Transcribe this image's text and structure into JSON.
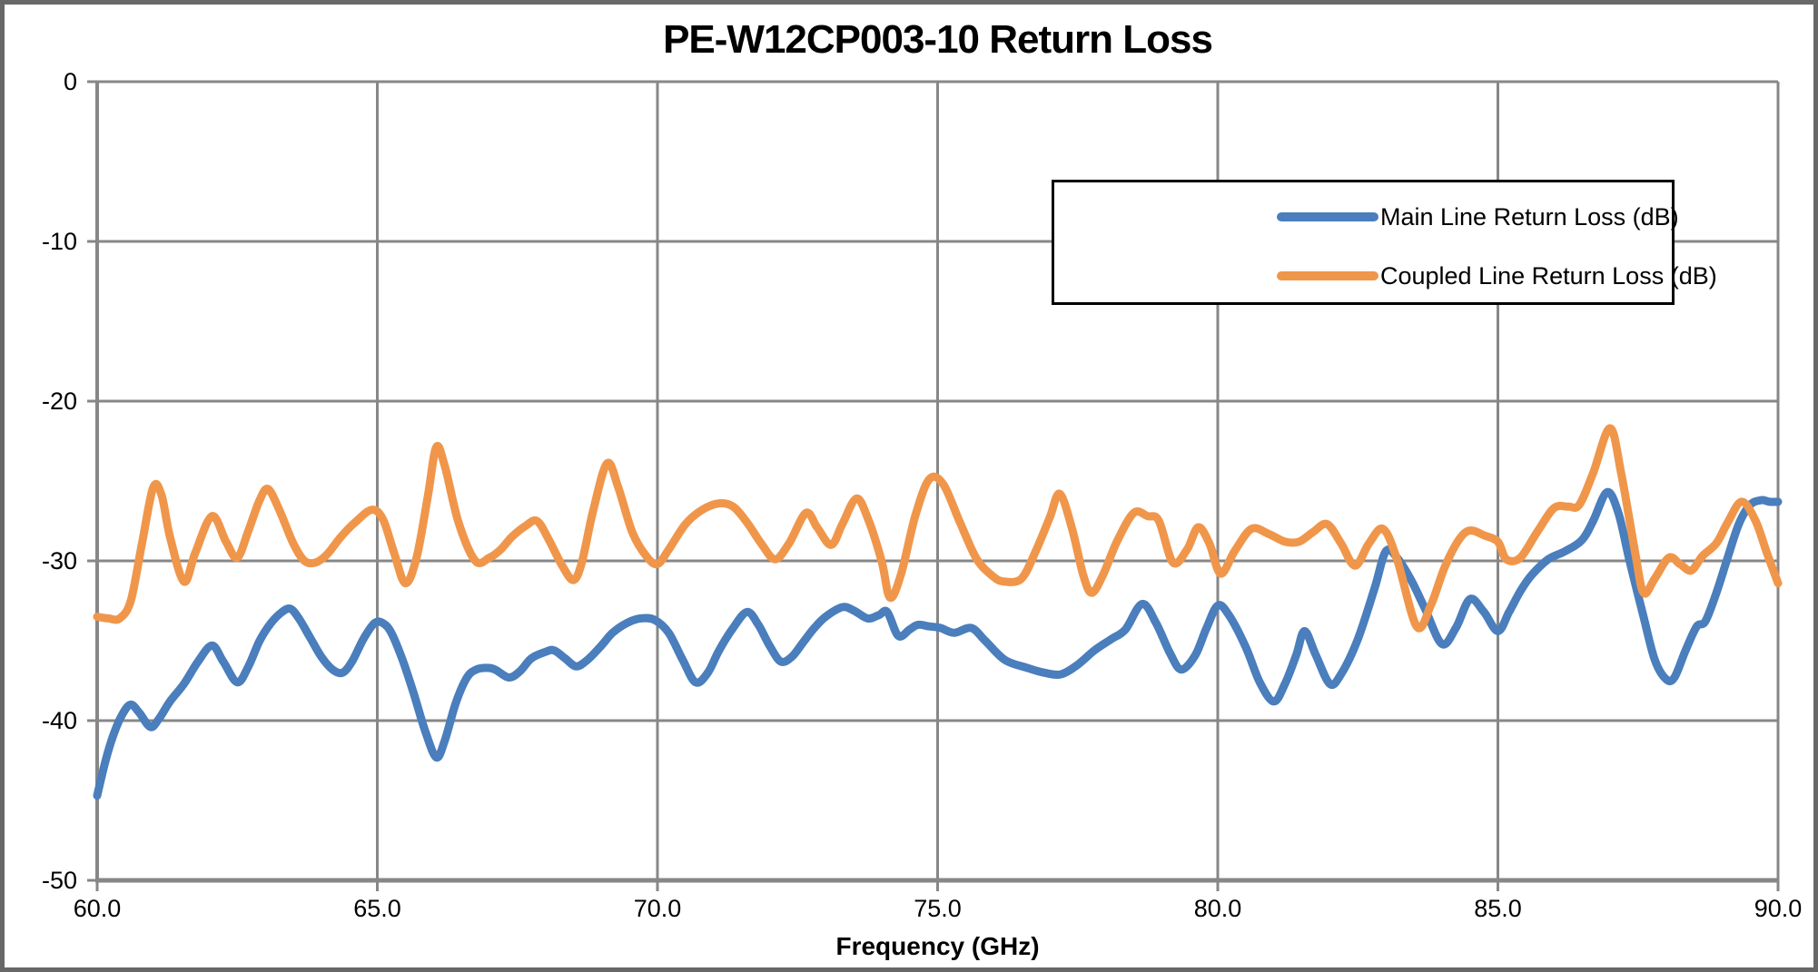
{
  "title": "PE-W12CP003-10 Return Loss",
  "x_axis_label": "Frequency (GHz)",
  "legend": {
    "items": [
      {
        "label": "Main Line Return Loss (dB)",
        "color": "#4A7EBC"
      },
      {
        "label": "Coupled Line Return Loss (dB)",
        "color": "#F0964B"
      }
    ]
  },
  "axes": {
    "grid_color": "#878787",
    "axis_color": "#878787",
    "x_ticks": [
      {
        "value": 60,
        "label": "60.0"
      },
      {
        "value": 65,
        "label": "65.0"
      },
      {
        "value": 70,
        "label": "70.0"
      },
      {
        "value": 75,
        "label": "75.0"
      },
      {
        "value": 80,
        "label": "80.0"
      },
      {
        "value": 85,
        "label": "85.0"
      },
      {
        "value": 90,
        "label": "90.0"
      }
    ],
    "y_ticks": [
      {
        "value": 0,
        "label": "0"
      },
      {
        "value": -10,
        "label": "-10"
      },
      {
        "value": -20,
        "label": "-20"
      },
      {
        "value": -30,
        "label": "-30"
      },
      {
        "value": -40,
        "label": "-40"
      },
      {
        "value": -50,
        "label": "-50"
      }
    ]
  },
  "chart_data": {
    "type": "line",
    "title": "PE-W12CP003-10 Return Loss",
    "xlabel": "Frequency (GHz)",
    "ylabel": "",
    "xlim": [
      60,
      90
    ],
    "ylim": [
      -50,
      0
    ],
    "grid": true,
    "legend_position": "upper-right-box",
    "series": [
      {
        "name": "Main Line Return Loss (dB)",
        "color": "#4A7EBC",
        "points": [
          [
            60.0,
            -44.7
          ],
          [
            60.15,
            -42.5
          ],
          [
            60.3,
            -40.8
          ],
          [
            60.45,
            -39.6
          ],
          [
            60.6,
            -39.0
          ],
          [
            60.75,
            -39.5
          ],
          [
            60.95,
            -40.4
          ],
          [
            61.1,
            -39.9
          ],
          [
            61.3,
            -38.8
          ],
          [
            61.55,
            -37.7
          ],
          [
            61.8,
            -36.3
          ],
          [
            62.05,
            -35.3
          ],
          [
            62.25,
            -36.3
          ],
          [
            62.5,
            -37.6
          ],
          [
            62.7,
            -36.6
          ],
          [
            62.9,
            -35.0
          ],
          [
            63.1,
            -33.9
          ],
          [
            63.3,
            -33.2
          ],
          [
            63.45,
            -33.0
          ],
          [
            63.6,
            -33.6
          ],
          [
            63.8,
            -34.8
          ],
          [
            64.0,
            -36.0
          ],
          [
            64.2,
            -36.8
          ],
          [
            64.38,
            -37.0
          ],
          [
            64.55,
            -36.3
          ],
          [
            64.75,
            -34.9
          ],
          [
            64.95,
            -33.9
          ],
          [
            65.1,
            -33.9
          ],
          [
            65.25,
            -34.5
          ],
          [
            65.45,
            -36.2
          ],
          [
            65.65,
            -38.3
          ],
          [
            65.85,
            -40.6
          ],
          [
            66.05,
            -42.3
          ],
          [
            66.2,
            -41.3
          ],
          [
            66.4,
            -38.9
          ],
          [
            66.6,
            -37.3
          ],
          [
            66.77,
            -36.8
          ],
          [
            66.95,
            -36.7
          ],
          [
            67.1,
            -36.8
          ],
          [
            67.35,
            -37.3
          ],
          [
            67.55,
            -36.9
          ],
          [
            67.75,
            -36.1
          ],
          [
            68.0,
            -35.7
          ],
          [
            68.15,
            -35.6
          ],
          [
            68.35,
            -36.1
          ],
          [
            68.55,
            -36.6
          ],
          [
            68.75,
            -36.2
          ],
          [
            69.0,
            -35.3
          ],
          [
            69.2,
            -34.5
          ],
          [
            69.45,
            -33.9
          ],
          [
            69.7,
            -33.6
          ],
          [
            69.95,
            -33.7
          ],
          [
            70.2,
            -34.5
          ],
          [
            70.45,
            -36.2
          ],
          [
            70.68,
            -37.6
          ],
          [
            70.9,
            -37.0
          ],
          [
            71.1,
            -35.6
          ],
          [
            71.35,
            -34.2
          ],
          [
            71.6,
            -33.2
          ],
          [
            71.8,
            -34.0
          ],
          [
            72.0,
            -35.3
          ],
          [
            72.2,
            -36.3
          ],
          [
            72.4,
            -36.0
          ],
          [
            72.6,
            -35.1
          ],
          [
            72.8,
            -34.2
          ],
          [
            73.0,
            -33.5
          ],
          [
            73.3,
            -32.9
          ],
          [
            73.5,
            -33.1
          ],
          [
            73.75,
            -33.6
          ],
          [
            73.95,
            -33.4
          ],
          [
            74.1,
            -33.2
          ],
          [
            74.3,
            -34.7
          ],
          [
            74.5,
            -34.3
          ],
          [
            74.65,
            -34.0
          ],
          [
            74.85,
            -34.1
          ],
          [
            75.05,
            -34.2
          ],
          [
            75.3,
            -34.5
          ],
          [
            75.6,
            -34.2
          ],
          [
            75.85,
            -35.0
          ],
          [
            76.2,
            -36.2
          ],
          [
            76.6,
            -36.7
          ],
          [
            76.9,
            -37.0
          ],
          [
            77.2,
            -37.1
          ],
          [
            77.5,
            -36.5
          ],
          [
            77.8,
            -35.6
          ],
          [
            78.1,
            -34.9
          ],
          [
            78.35,
            -34.3
          ],
          [
            78.65,
            -32.7
          ],
          [
            78.9,
            -33.9
          ],
          [
            79.15,
            -35.8
          ],
          [
            79.35,
            -36.8
          ],
          [
            79.6,
            -35.9
          ],
          [
            79.8,
            -34.2
          ],
          [
            80.0,
            -32.8
          ],
          [
            80.2,
            -33.4
          ],
          [
            80.5,
            -35.4
          ],
          [
            80.75,
            -37.6
          ],
          [
            81.0,
            -38.8
          ],
          [
            81.2,
            -37.7
          ],
          [
            81.4,
            -35.9
          ],
          [
            81.55,
            -34.4
          ],
          [
            81.75,
            -35.9
          ],
          [
            82.0,
            -37.7
          ],
          [
            82.2,
            -37.1
          ],
          [
            82.5,
            -34.9
          ],
          [
            82.8,
            -31.7
          ],
          [
            83.0,
            -29.4
          ],
          [
            83.2,
            -29.8
          ],
          [
            83.45,
            -31.2
          ],
          [
            83.7,
            -33.0
          ],
          [
            84.0,
            -35.2
          ],
          [
            84.25,
            -34.2
          ],
          [
            84.5,
            -32.4
          ],
          [
            84.75,
            -33.2
          ],
          [
            85.0,
            -34.4
          ],
          [
            85.2,
            -33.2
          ],
          [
            85.4,
            -31.9
          ],
          [
            85.6,
            -30.9
          ],
          [
            85.9,
            -29.9
          ],
          [
            86.2,
            -29.4
          ],
          [
            86.5,
            -28.7
          ],
          [
            86.7,
            -27.5
          ],
          [
            86.95,
            -25.7
          ],
          [
            87.15,
            -27.0
          ],
          [
            87.35,
            -30.0
          ],
          [
            87.6,
            -33.5
          ],
          [
            87.8,
            -36.2
          ],
          [
            88.0,
            -37.4
          ],
          [
            88.15,
            -37.3
          ],
          [
            88.35,
            -35.6
          ],
          [
            88.55,
            -34.1
          ],
          [
            88.7,
            -33.8
          ],
          [
            88.9,
            -32.0
          ],
          [
            89.1,
            -29.8
          ],
          [
            89.3,
            -27.7
          ],
          [
            89.5,
            -26.5
          ],
          [
            89.7,
            -26.2
          ],
          [
            89.85,
            -26.3
          ],
          [
            90.0,
            -26.3
          ]
        ]
      },
      {
        "name": "Coupled Line Return Loss (dB)",
        "color": "#F0964B",
        "points": [
          [
            60.0,
            -33.5
          ],
          [
            60.2,
            -33.6
          ],
          [
            60.4,
            -33.6
          ],
          [
            60.6,
            -32.5
          ],
          [
            60.8,
            -28.9
          ],
          [
            61.0,
            -25.4
          ],
          [
            61.15,
            -25.9
          ],
          [
            61.3,
            -28.5
          ],
          [
            61.55,
            -31.3
          ],
          [
            61.75,
            -29.5
          ],
          [
            62.05,
            -27.2
          ],
          [
            62.3,
            -28.8
          ],
          [
            62.5,
            -29.8
          ],
          [
            62.7,
            -28.1
          ],
          [
            62.9,
            -26.2
          ],
          [
            63.05,
            -25.5
          ],
          [
            63.25,
            -26.8
          ],
          [
            63.5,
            -28.9
          ],
          [
            63.7,
            -30.0
          ],
          [
            63.9,
            -30.1
          ],
          [
            64.1,
            -29.6
          ],
          [
            64.35,
            -28.5
          ],
          [
            64.6,
            -27.6
          ],
          [
            64.9,
            -26.8
          ],
          [
            65.1,
            -27.4
          ],
          [
            65.3,
            -29.5
          ],
          [
            65.5,
            -31.4
          ],
          [
            65.7,
            -29.8
          ],
          [
            65.9,
            -26.0
          ],
          [
            66.05,
            -22.9
          ],
          [
            66.2,
            -24.0
          ],
          [
            66.45,
            -27.6
          ],
          [
            66.75,
            -30.0
          ],
          [
            67.0,
            -29.8
          ],
          [
            67.2,
            -29.3
          ],
          [
            67.4,
            -28.5
          ],
          [
            67.65,
            -27.8
          ],
          [
            67.85,
            -27.5
          ],
          [
            68.05,
            -28.6
          ],
          [
            68.3,
            -30.3
          ],
          [
            68.5,
            -31.2
          ],
          [
            68.65,
            -30.1
          ],
          [
            68.85,
            -26.9
          ],
          [
            69.1,
            -23.9
          ],
          [
            69.3,
            -25.4
          ],
          [
            69.55,
            -28.2
          ],
          [
            69.8,
            -29.7
          ],
          [
            70.0,
            -30.2
          ],
          [
            70.2,
            -29.3
          ],
          [
            70.5,
            -27.7
          ],
          [
            70.8,
            -26.8
          ],
          [
            71.1,
            -26.4
          ],
          [
            71.35,
            -26.6
          ],
          [
            71.6,
            -27.6
          ],
          [
            71.85,
            -28.9
          ],
          [
            72.1,
            -29.9
          ],
          [
            72.35,
            -28.9
          ],
          [
            72.65,
            -27.0
          ],
          [
            72.85,
            -27.9
          ],
          [
            73.1,
            -29.0
          ],
          [
            73.3,
            -27.7
          ],
          [
            73.55,
            -26.1
          ],
          [
            73.75,
            -27.3
          ],
          [
            74.0,
            -30.0
          ],
          [
            74.15,
            -32.3
          ],
          [
            74.35,
            -30.8
          ],
          [
            74.6,
            -27.2
          ],
          [
            74.85,
            -24.9
          ],
          [
            75.1,
            -25.2
          ],
          [
            75.4,
            -27.6
          ],
          [
            75.7,
            -29.9
          ],
          [
            76.0,
            -31.0
          ],
          [
            76.2,
            -31.3
          ],
          [
            76.5,
            -31.1
          ],
          [
            76.75,
            -29.4
          ],
          [
            77.0,
            -27.3
          ],
          [
            77.18,
            -25.8
          ],
          [
            77.4,
            -28.0
          ],
          [
            77.6,
            -30.9
          ],
          [
            77.75,
            -32.0
          ],
          [
            77.95,
            -30.9
          ],
          [
            78.2,
            -28.8
          ],
          [
            78.5,
            -27.0
          ],
          [
            78.75,
            -27.2
          ],
          [
            78.95,
            -27.5
          ],
          [
            79.2,
            -30.1
          ],
          [
            79.45,
            -29.3
          ],
          [
            79.65,
            -27.9
          ],
          [
            79.85,
            -28.9
          ],
          [
            80.05,
            -30.8
          ],
          [
            80.3,
            -29.4
          ],
          [
            80.6,
            -28.0
          ],
          [
            80.9,
            -28.3
          ],
          [
            81.2,
            -28.8
          ],
          [
            81.45,
            -28.8
          ],
          [
            81.7,
            -28.2
          ],
          [
            81.95,
            -27.7
          ],
          [
            82.2,
            -28.9
          ],
          [
            82.45,
            -30.3
          ],
          [
            82.7,
            -28.9
          ],
          [
            82.95,
            -28.0
          ],
          [
            83.2,
            -29.9
          ],
          [
            83.55,
            -34.1
          ],
          [
            83.8,
            -32.8
          ],
          [
            84.05,
            -30.4
          ],
          [
            84.3,
            -28.7
          ],
          [
            84.5,
            -28.1
          ],
          [
            84.75,
            -28.4
          ],
          [
            85.0,
            -28.8
          ],
          [
            85.15,
            -29.9
          ],
          [
            85.4,
            -29.8
          ],
          [
            85.7,
            -28.2
          ],
          [
            86.0,
            -26.7
          ],
          [
            86.25,
            -26.6
          ],
          [
            86.45,
            -26.5
          ],
          [
            86.7,
            -24.5
          ],
          [
            87.0,
            -21.7
          ],
          [
            87.2,
            -24.5
          ],
          [
            87.45,
            -29.5
          ],
          [
            87.6,
            -32.0
          ],
          [
            87.8,
            -31.1
          ],
          [
            88.05,
            -29.8
          ],
          [
            88.25,
            -30.2
          ],
          [
            88.45,
            -30.6
          ],
          [
            88.65,
            -29.7
          ],
          [
            88.9,
            -28.9
          ],
          [
            89.1,
            -27.6
          ],
          [
            89.35,
            -26.3
          ],
          [
            89.6,
            -27.5
          ],
          [
            89.8,
            -29.5
          ],
          [
            90.0,
            -31.4
          ]
        ]
      }
    ]
  }
}
